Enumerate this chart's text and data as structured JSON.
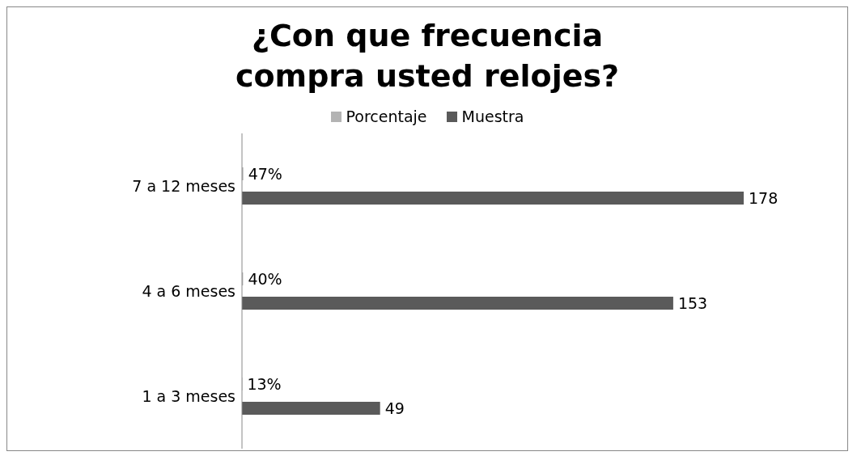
{
  "chart_data": {
    "type": "bar",
    "orientation": "horizontal",
    "title": "¿Con que frecuencia compra usted relojes?",
    "categories": [
      "7 a 12 meses",
      "4 a 6 meses",
      "1 a 3 meses"
    ],
    "legend": "top",
    "grid": false,
    "series": [
      {
        "name": "Porcentaje",
        "color": "#b3b3b3",
        "values": [
          0.47,
          0.4,
          0.13
        ],
        "value_labels": [
          "47%",
          "40%",
          "13%"
        ]
      },
      {
        "name": "Muestra",
        "color": "#5a5a5a",
        "values": [
          178,
          153,
          49
        ],
        "value_labels": [
          "178",
          "153",
          "49"
        ]
      }
    ]
  }
}
